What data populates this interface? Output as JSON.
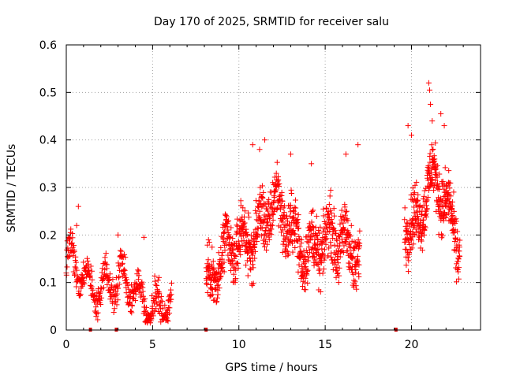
{
  "chart_data": {
    "type": "scatter",
    "title": "Day 170 of 2025, SRMTID for receiver salu",
    "xlabel": "GPS time / hours",
    "ylabel": "SRMTID / TECUs",
    "xlim": [
      0,
      24
    ],
    "ylim": [
      0,
      0.6
    ],
    "x_ticks": [
      0,
      5,
      10,
      15,
      20
    ],
    "x_tick_labels": [
      "0",
      "5",
      "10",
      "15",
      "20"
    ],
    "y_ticks": [
      0,
      0.1,
      0.2,
      0.3,
      0.4,
      0.5,
      0.6
    ],
    "y_tick_labels": [
      "0",
      "0.1",
      "0.2",
      "0.3",
      "0.4",
      "0.5",
      "0.6"
    ],
    "grid": true,
    "marker": "+",
    "color": "#ff0000",
    "gap_markers_x": [
      1.4,
      2.9,
      8.1,
      19.1
    ],
    "series": [
      {
        "name": "SRMTID",
        "segments": [
          {
            "start": 0.0,
            "end": 6.1,
            "base": [
              0.13,
              0.11,
              0.1,
              0.09,
              0.08,
              0.06,
              0.04
            ],
            "spread": 0.05,
            "n": 420
          },
          {
            "start": 8.1,
            "end": 17.0,
            "base": [
              0.1,
              0.13,
              0.19,
              0.22,
              0.25,
              0.21,
              0.18,
              0.17,
              0.19,
              0.18
            ],
            "spread": 0.09,
            "n": 900
          },
          {
            "start": 19.6,
            "end": 22.8,
            "base": [
              0.26,
              0.22,
              0.28,
              0.3,
              0.25,
              0.2
            ],
            "spread": 0.09,
            "n": 360
          }
        ],
        "points": [
          [
            0.7,
            0.26
          ],
          [
            0.6,
            0.22
          ],
          [
            4.5,
            0.195
          ],
          [
            3.0,
            0.2
          ],
          [
            11.5,
            0.4
          ],
          [
            11.2,
            0.38
          ],
          [
            16.9,
            0.39
          ],
          [
            16.2,
            0.37
          ],
          [
            19.8,
            0.43
          ],
          [
            21.0,
            0.52
          ],
          [
            21.05,
            0.505
          ],
          [
            21.1,
            0.475
          ],
          [
            21.7,
            0.455
          ],
          [
            20.0,
            0.41
          ],
          [
            21.2,
            0.44
          ],
          [
            21.9,
            0.43
          ],
          [
            10.8,
            0.39
          ],
          [
            14.2,
            0.35
          ],
          [
            13.0,
            0.37
          ]
        ]
      }
    ]
  }
}
